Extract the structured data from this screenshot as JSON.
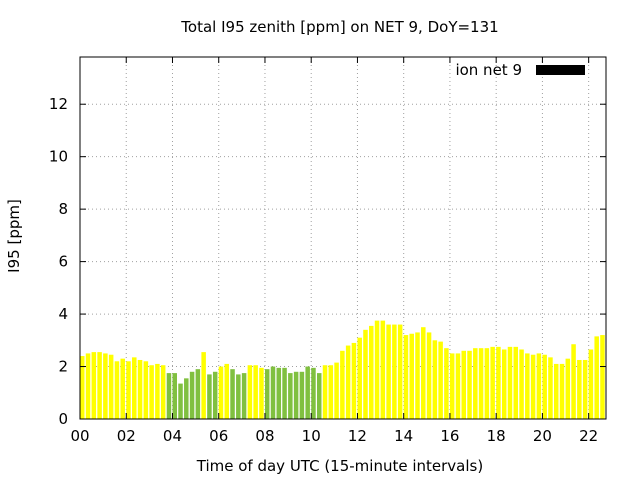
{
  "chart_data": {
    "type": "bar",
    "title": "Total I95 zenith [ppm] on NET 9, DoY=131",
    "xlabel": "Time of day UTC (15-minute intervals)",
    "ylabel": "I95 [ppm]",
    "xlim": [
      0,
      22.75
    ],
    "ylim": [
      0,
      13.8
    ],
    "grid": true,
    "legend_position": "top-right",
    "x_ticks": [
      {
        "value": 0,
        "label": "00"
      },
      {
        "value": 2,
        "label": "02"
      },
      {
        "value": 4,
        "label": "04"
      },
      {
        "value": 6,
        "label": "06"
      },
      {
        "value": 8,
        "label": "08"
      },
      {
        "value": 10,
        "label": "10"
      },
      {
        "value": 12,
        "label": "12"
      },
      {
        "value": 14,
        "label": "14"
      },
      {
        "value": 16,
        "label": "16"
      },
      {
        "value": 18,
        "label": "18"
      },
      {
        "value": 20,
        "label": "20"
      },
      {
        "value": 22,
        "label": "22"
      }
    ],
    "y_ticks": [
      {
        "value": 0,
        "label": "0"
      },
      {
        "value": 2,
        "label": "2"
      },
      {
        "value": 4,
        "label": "4"
      },
      {
        "value": 6,
        "label": "6"
      },
      {
        "value": 8,
        "label": "8"
      },
      {
        "value": 10,
        "label": "10"
      },
      {
        "value": 12,
        "label": "12"
      }
    ],
    "legend": {
      "label": "ion net 9",
      "color": "#000000"
    },
    "colors": {
      "yellow": "#ffff00",
      "green": "#80c040"
    },
    "series": [
      {
        "x": [
          0,
          0.25,
          0.5,
          0.75,
          1,
          1.25,
          1.5,
          1.75,
          2,
          2.25,
          2.5,
          2.75,
          3,
          3.25,
          3.5,
          3.75,
          4,
          4.25,
          4.5,
          4.75,
          5,
          5.25,
          5.5,
          5.75,
          6,
          6.25,
          6.5,
          6.75,
          7,
          7.25,
          7.5,
          7.75,
          8,
          8.25,
          8.5,
          8.75,
          9,
          9.25,
          9.5,
          9.75,
          10,
          10.25,
          10.5,
          10.75,
          11,
          11.25,
          11.5,
          11.75,
          12,
          12.25,
          12.5,
          12.75,
          13,
          13.25,
          13.5,
          13.75,
          14,
          14.25,
          14.5,
          14.75,
          15,
          15.25,
          15.5,
          15.75,
          16,
          16.25,
          16.5,
          16.75,
          17,
          17.25,
          17.5,
          17.75,
          18,
          18.25,
          18.5,
          18.75,
          19,
          19.25,
          19.5,
          19.75,
          20,
          20.25,
          20.5,
          20.75,
          21,
          21.25,
          21.5,
          21.75,
          22,
          22.25,
          22.5
        ],
        "values": [
          2.4,
          2.5,
          2.55,
          2.55,
          2.5,
          2.45,
          2.2,
          2.3,
          2.2,
          2.35,
          2.25,
          2.2,
          2.05,
          2.1,
          2.05,
          1.75,
          1.75,
          1.35,
          1.55,
          1.8,
          1.9,
          2.55,
          1.7,
          1.8,
          2.0,
          2.1,
          1.9,
          1.7,
          1.75,
          2.05,
          2.05,
          1.95,
          1.9,
          2.0,
          1.95,
          1.95,
          1.75,
          1.8,
          1.8,
          2.0,
          1.95,
          1.75,
          2.05,
          2.05,
          2.15,
          2.6,
          2.8,
          2.9,
          3.1,
          3.4,
          3.55,
          3.75,
          3.75,
          3.6,
          3.6,
          3.6,
          3.2,
          3.25,
          3.3,
          3.5,
          3.3,
          3.0,
          2.95,
          2.7,
          2.5,
          2.5,
          2.6,
          2.6,
          2.7,
          2.7,
          2.7,
          2.75,
          2.75,
          2.65,
          2.75,
          2.75,
          2.65,
          2.5,
          2.45,
          2.5,
          2.45,
          2.35,
          2.1,
          2.1,
          2.3,
          2.85,
          2.25,
          2.25,
          2.65,
          3.15,
          3.2
        ],
        "colors": [
          "yellow",
          "yellow",
          "yellow",
          "yellow",
          "yellow",
          "yellow",
          "yellow",
          "yellow",
          "yellow",
          "yellow",
          "yellow",
          "yellow",
          "yellow",
          "yellow",
          "yellow",
          "green",
          "green",
          "green",
          "green",
          "green",
          "green",
          "yellow",
          "green",
          "green",
          "yellow",
          "yellow",
          "green",
          "green",
          "green",
          "yellow",
          "yellow",
          "yellow",
          "green",
          "green",
          "green",
          "green",
          "green",
          "green",
          "green",
          "green",
          "green",
          "green",
          "yellow",
          "yellow",
          "yellow",
          "yellow",
          "yellow",
          "yellow",
          "yellow",
          "yellow",
          "yellow",
          "yellow",
          "yellow",
          "yellow",
          "yellow",
          "yellow",
          "yellow",
          "yellow",
          "yellow",
          "yellow",
          "yellow",
          "yellow",
          "yellow",
          "yellow",
          "yellow",
          "yellow",
          "yellow",
          "yellow",
          "yellow",
          "yellow",
          "yellow",
          "yellow",
          "yellow",
          "yellow",
          "yellow",
          "yellow",
          "yellow",
          "yellow",
          "yellow",
          "yellow",
          "yellow",
          "yellow",
          "yellow",
          "yellow",
          "yellow",
          "yellow",
          "yellow",
          "yellow",
          "yellow",
          "yellow",
          "yellow"
        ]
      }
    ]
  }
}
